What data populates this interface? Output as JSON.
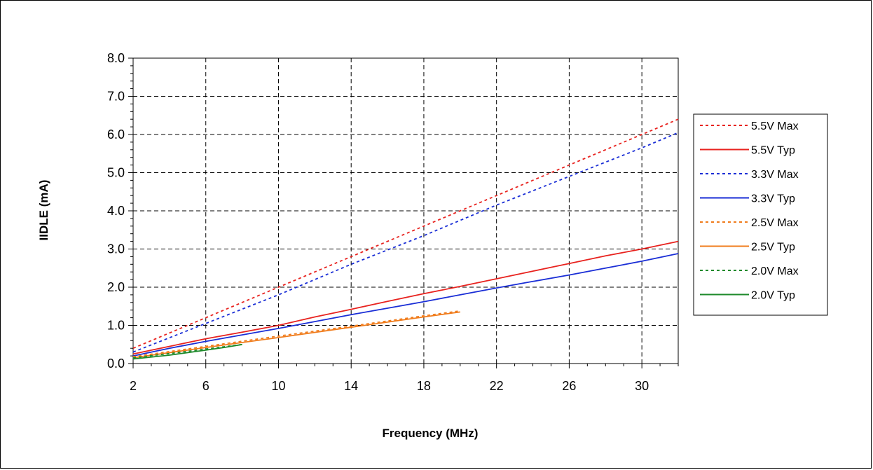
{
  "chart_data": {
    "type": "line",
    "xlabel": "Frequency (MHz)",
    "ylabel": "IIDLE (mA)",
    "xlim": [
      2,
      32
    ],
    "ylim": [
      0,
      8
    ],
    "x_ticks": [
      "2",
      "6",
      "10",
      "14",
      "18",
      "22",
      "26",
      "30"
    ],
    "y_ticks": [
      "0.0",
      "1.0",
      "2.0",
      "3.0",
      "4.0",
      "5.0",
      "6.0",
      "7.0",
      "8.0"
    ],
    "grid": true,
    "legend_position": "right",
    "series": [
      {
        "name": "5.5V Max",
        "color": "#e8231f",
        "dash": true,
        "x": [
          2,
          6,
          10,
          14,
          18,
          22,
          26,
          30,
          32
        ],
        "y": [
          0.4,
          1.2,
          2.0,
          2.8,
          3.6,
          4.4,
          5.2,
          6.0,
          6.4
        ]
      },
      {
        "name": "5.5V Typ",
        "color": "#e8231f",
        "dash": false,
        "x": [
          2,
          4,
          6,
          8,
          10,
          12,
          14,
          16,
          18,
          20,
          22,
          24,
          26,
          28,
          30,
          32
        ],
        "y": [
          0.25,
          0.45,
          0.65,
          0.82,
          1.0,
          1.22,
          1.42,
          1.63,
          1.83,
          2.02,
          2.22,
          2.42,
          2.62,
          2.82,
          3.0,
          3.2
        ]
      },
      {
        "name": "3.3V Max",
        "color": "#1a2ed6",
        "dash": true,
        "x": [
          2,
          6,
          10,
          14,
          18,
          22,
          26,
          30,
          32
        ],
        "y": [
          0.3,
          1.05,
          1.8,
          2.6,
          3.35,
          4.15,
          4.9,
          5.65,
          6.05
        ]
      },
      {
        "name": "3.3V Typ",
        "color": "#1a2ed6",
        "dash": false,
        "x": [
          2,
          4,
          6,
          8,
          10,
          12,
          14,
          16,
          18,
          20,
          22,
          24,
          26,
          28,
          30,
          32
        ],
        "y": [
          0.2,
          0.4,
          0.58,
          0.75,
          0.92,
          1.1,
          1.28,
          1.45,
          1.62,
          1.8,
          1.98,
          2.15,
          2.32,
          2.5,
          2.68,
          2.88
        ]
      },
      {
        "name": "2.5V Max",
        "color": "#f07c1c",
        "dash": true,
        "x": [
          2,
          6,
          10,
          14,
          18,
          20
        ],
        "y": [
          0.18,
          0.45,
          0.72,
          0.98,
          1.25,
          1.38
        ]
      },
      {
        "name": "2.5V Typ",
        "color": "#f07c1c",
        "dash": false,
        "x": [
          2,
          6,
          10,
          14,
          18,
          20
        ],
        "y": [
          0.15,
          0.42,
          0.68,
          0.95,
          1.22,
          1.35
        ]
      },
      {
        "name": "2.0V Max",
        "color": "#1e8a2b",
        "dash": true,
        "x": [
          2,
          4,
          6,
          8
        ],
        "y": [
          0.15,
          0.26,
          0.38,
          0.5
        ]
      },
      {
        "name": "2.0V Typ",
        "color": "#1e8a2b",
        "dash": false,
        "x": [
          2,
          4,
          6,
          7,
          8
        ],
        "y": [
          0.12,
          0.22,
          0.35,
          0.42,
          0.5
        ]
      }
    ]
  }
}
